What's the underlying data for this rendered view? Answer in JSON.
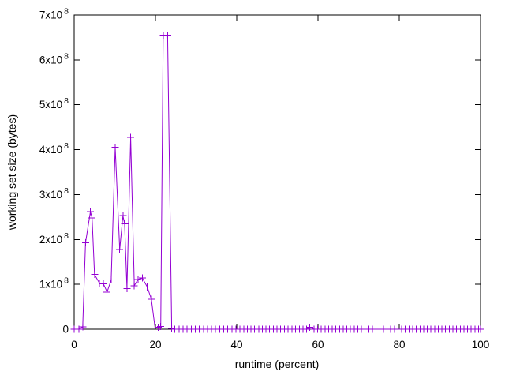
{
  "window": {
    "background": "#ffffff"
  },
  "chart_data": {
    "type": "line",
    "title": "",
    "xlabel": "runtime (percent)",
    "ylabel": "working set size (bytes)",
    "xlim": [
      0,
      100
    ],
    "ylim": [
      0,
      700000000.0
    ],
    "grid": false,
    "legend": "none",
    "colors": {
      "line": "#9400d3",
      "axis": "#000000",
      "text": "#000000",
      "background": "#ffffff"
    },
    "x_ticks": [
      {
        "v": 0,
        "label": "0"
      },
      {
        "v": 20,
        "label": "20"
      },
      {
        "v": 40,
        "label": "40"
      },
      {
        "v": 60,
        "label": "60"
      },
      {
        "v": 80,
        "label": "80"
      },
      {
        "v": 100,
        "label": "100"
      }
    ],
    "y_ticks": [
      {
        "v": 0,
        "label": "0",
        "exp": ""
      },
      {
        "v": 100000000.0,
        "label": "1x10",
        "exp": "8"
      },
      {
        "v": 200000000.0,
        "label": "2x10",
        "exp": "8"
      },
      {
        "v": 300000000.0,
        "label": "3x10",
        "exp": "8"
      },
      {
        "v": 400000000.0,
        "label": "4x10",
        "exp": "8"
      },
      {
        "v": 500000000.0,
        "label": "5x10",
        "exp": "8"
      },
      {
        "v": 600000000.0,
        "label": "6x10",
        "exp": "8"
      },
      {
        "v": 700000000.0,
        "label": "7x10",
        "exp": "8"
      }
    ],
    "series": [
      {
        "name": "working set size",
        "color": "#9400d3",
        "marker": "plus",
        "points": [
          [
            0,
            0
          ],
          [
            1.2,
            0
          ],
          [
            2.1,
            5000000.0
          ],
          [
            2.8,
            193000000.0
          ],
          [
            4.0,
            262000000.0
          ],
          [
            4.4,
            248000000.0
          ],
          [
            5.0,
            122000000.0
          ],
          [
            6.2,
            103000000.0
          ],
          [
            7.2,
            101000000.0
          ],
          [
            8.1,
            83000000.0
          ],
          [
            9.1,
            110000000.0
          ],
          [
            10.1,
            405000000.0
          ],
          [
            11.2,
            178000000.0
          ],
          [
            12.0,
            253000000.0
          ],
          [
            12.4,
            235000000.0
          ],
          [
            13.0,
            91000000.0
          ],
          [
            13.9,
            427000000.0
          ],
          [
            14.8,
            97000000.0
          ],
          [
            15.7,
            111000000.0
          ],
          [
            16.8,
            114000000.0
          ],
          [
            18.0,
            94000000.0
          ],
          [
            19.0,
            67000000.0
          ],
          [
            19.9,
            3000000.0
          ],
          [
            20.7,
            4000000.0
          ],
          [
            21.3,
            6000000.0
          ],
          [
            21.9,
            655000000.0
          ],
          [
            23.0,
            655000000.0
          ],
          [
            24.0,
            2000000.0
          ],
          [
            24.8,
            0
          ],
          [
            25.8,
            0
          ],
          [
            26.8,
            0
          ],
          [
            27.8,
            0
          ],
          [
            28.8,
            0
          ],
          [
            29.8,
            0
          ],
          [
            30.8,
            0
          ],
          [
            31.8,
            0
          ],
          [
            32.8,
            0
          ],
          [
            33.8,
            0
          ],
          [
            34.8,
            0
          ],
          [
            35.8,
            0
          ],
          [
            36.8,
            0
          ],
          [
            37.8,
            0
          ],
          [
            38.8,
            0
          ],
          [
            39.8,
            0
          ],
          [
            40.8,
            0
          ],
          [
            41.7,
            0
          ],
          [
            42.6,
            0
          ],
          [
            43.5,
            0
          ],
          [
            44.4,
            0
          ],
          [
            45.4,
            0
          ],
          [
            46.3,
            0
          ],
          [
            47.2,
            0
          ],
          [
            48.1,
            0
          ],
          [
            49.0,
            0
          ],
          [
            49.9,
            0
          ],
          [
            50.8,
            0
          ],
          [
            51.7,
            0
          ],
          [
            52.6,
            0
          ],
          [
            53.6,
            0
          ],
          [
            54.5,
            0
          ],
          [
            55.4,
            0
          ],
          [
            56.3,
            0
          ],
          [
            57.2,
            0
          ],
          [
            58.0,
            4000000.0
          ],
          [
            59.0,
            0
          ],
          [
            59.9,
            0
          ],
          [
            60.8,
            0
          ],
          [
            61.7,
            0
          ],
          [
            62.6,
            0
          ],
          [
            63.5,
            0
          ],
          [
            64.4,
            0
          ],
          [
            65.3,
            0
          ],
          [
            66.2,
            0
          ],
          [
            67.1,
            0
          ],
          [
            68.0,
            0
          ],
          [
            68.9,
            0
          ],
          [
            69.8,
            0
          ],
          [
            70.7,
            0
          ],
          [
            71.6,
            0
          ],
          [
            72.5,
            0
          ],
          [
            73.4,
            0
          ],
          [
            74.3,
            0
          ],
          [
            75.2,
            0
          ],
          [
            76.1,
            0
          ],
          [
            77.0,
            0
          ],
          [
            77.9,
            0
          ],
          [
            78.8,
            0
          ],
          [
            79.7,
            0
          ],
          [
            80.6,
            0
          ],
          [
            81.5,
            0
          ],
          [
            82.4,
            0
          ],
          [
            83.3,
            0
          ],
          [
            84.2,
            0
          ],
          [
            85.1,
            0
          ],
          [
            86.0,
            0
          ],
          [
            86.9,
            0
          ],
          [
            87.8,
            0
          ],
          [
            88.7,
            0
          ],
          [
            89.6,
            0
          ],
          [
            90.5,
            0
          ],
          [
            91.4,
            0
          ],
          [
            92.3,
            0
          ],
          [
            93.2,
            0
          ],
          [
            94.1,
            0
          ],
          [
            95.0,
            0
          ],
          [
            95.9,
            0
          ],
          [
            96.8,
            0
          ],
          [
            97.7,
            0
          ],
          [
            98.6,
            0
          ],
          [
            99.5,
            0
          ],
          [
            100,
            0
          ]
        ]
      }
    ]
  }
}
